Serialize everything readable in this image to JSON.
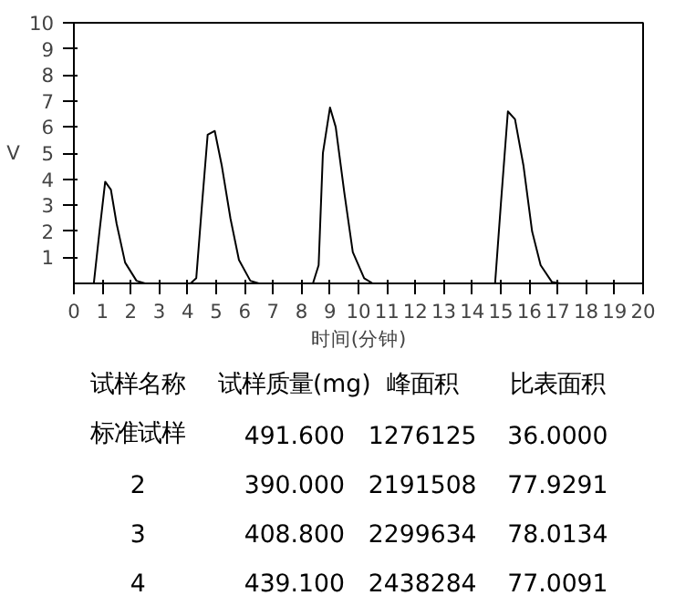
{
  "chart_data": [
    {
      "type": "line",
      "xlabel": "时间(分钟)",
      "ylabel": "V",
      "color": "#000000",
      "x": [
        0,
        0.7,
        0.9,
        1.1,
        1.3,
        1.5,
        1.8,
        2.2,
        2.5,
        4.1,
        4.3,
        4.5,
        4.7,
        4.95,
        5.2,
        5.5,
        5.8,
        6.2,
        6.5,
        8.4,
        8.6,
        8.75,
        9.0,
        9.2,
        9.5,
        9.8,
        10.2,
        10.5,
        14.8,
        15.0,
        15.25,
        15.5,
        15.8,
        16.1,
        16.4,
        16.8,
        17.1,
        20
      ],
      "values": [
        0,
        0,
        2,
        3.9,
        3.6,
        2.3,
        0.8,
        0.1,
        0,
        0,
        0.2,
        3,
        5.7,
        5.85,
        4.5,
        2.5,
        0.9,
        0.1,
        0,
        0,
        0.7,
        5,
        6.75,
        6,
        3.5,
        1.2,
        0.2,
        0,
        0,
        3,
        6.6,
        6.3,
        4.5,
        2,
        0.7,
        0.05,
        0,
        0
      ],
      "xlim": [
        0,
        20
      ],
      "xticks": [
        0,
        1,
        2,
        3,
        4,
        5,
        6,
        7,
        8,
        9,
        10,
        11,
        12,
        13,
        14,
        15,
        16,
        17,
        18,
        19,
        20
      ],
      "ylim": [
        0,
        10
      ],
      "yticks": [
        1,
        2,
        3,
        4,
        5,
        6,
        7,
        8,
        9,
        10
      ],
      "grid": false
    },
    {
      "type": "other",
      "annotations": [
        "试样名称",
        "试样质量(mg)",
        "峰面积",
        "比表面积",
        "标准试样",
        "491.600",
        "1276125",
        "36.0000",
        "2",
        "390.000",
        "2191508",
        "77.9291",
        "3",
        "408.800",
        "2299634",
        "78.0134",
        "4",
        "439.100",
        "2438284",
        "77.0091"
      ]
    }
  ]
}
